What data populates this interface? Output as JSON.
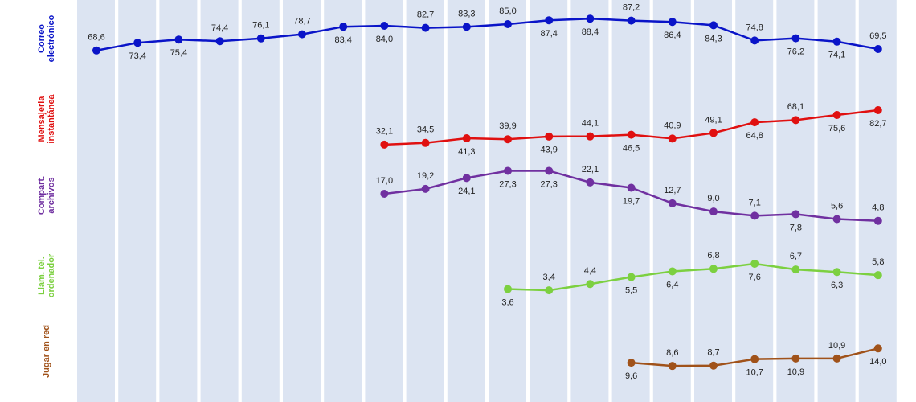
{
  "chart_data": {
    "type": "line",
    "series": [
      {
        "name": "Correo electrónico",
        "color": "#0a14c8",
        "ylim": [
          50,
          100
        ],
        "values": [
          68.6,
          73.4,
          75.4,
          74.4,
          76.1,
          78.7,
          83.4,
          84.0,
          82.7,
          83.3,
          85.0,
          87.4,
          88.4,
          87.2,
          86.4,
          84.3,
          74.8,
          76.2,
          74.1,
          69.5
        ],
        "value_labels": [
          "68,6",
          "73,4",
          "75,4",
          "74,4",
          "76,1",
          "78,7",
          "83,4",
          "84,0",
          "82,7",
          "83,3",
          "85,0",
          "87,4",
          "88,4",
          "87,2",
          "86,4",
          "84,3",
          "74,8",
          "76,2",
          "74,1",
          "69,5"
        ]
      },
      {
        "name": "Mensajeria instantánea",
        "color": "#e01010",
        "ylim": [
          0,
          150
        ],
        "values": [
          null,
          null,
          null,
          null,
          null,
          null,
          null,
          32.1,
          34.5,
          41.3,
          39.9,
          43.9,
          44.1,
          46.5,
          40.9,
          49.1,
          64.8,
          68.1,
          75.6,
          82.7
        ],
        "value_labels": [
          null,
          null,
          null,
          null,
          null,
          null,
          null,
          "32,1",
          "34,5",
          "41,3",
          "39,9",
          "43,9",
          "44,1",
          "46,5",
          "40,9",
          "49,1",
          "64,8",
          "68,1",
          "75,6",
          "82,7"
        ]
      },
      {
        "name": "Compart. archivos",
        "color": "#7030a0",
        "ylim": [
          0,
          30
        ],
        "values": [
          null,
          null,
          null,
          null,
          null,
          null,
          null,
          17.0,
          19.2,
          24.1,
          27.3,
          27.3,
          22.1,
          19.7,
          12.7,
          9.0,
          7.1,
          7.8,
          5.6,
          4.8
        ],
        "value_labels": [
          null,
          null,
          null,
          null,
          null,
          null,
          null,
          "17,0",
          "19,2",
          "24,1",
          "27,3",
          "27,3",
          "22,1",
          "19,7",
          "12,7",
          "9,0",
          "7,1",
          "7,8",
          "5,6",
          "4,8"
        ]
      },
      {
        "name": "Llam. tel. ordenador",
        "color": "#7cd040",
        "ylim": [
          0,
          10
        ],
        "values": [
          null,
          null,
          null,
          null,
          null,
          null,
          null,
          null,
          null,
          null,
          3.6,
          3.4,
          4.4,
          5.5,
          6.4,
          6.8,
          7.6,
          6.7,
          6.3,
          5.8
        ],
        "value_labels": [
          null,
          null,
          null,
          null,
          null,
          null,
          null,
          null,
          null,
          null,
          "3,6",
          "3,4",
          "4,4",
          "5,5",
          "6,4",
          "6,8",
          "7,6",
          "6,7",
          "6,3",
          "5,8"
        ]
      },
      {
        "name": "Jugar en red",
        "color": "#a0521a",
        "ylim": [
          0,
          20
        ],
        "values": [
          null,
          null,
          null,
          null,
          null,
          null,
          null,
          null,
          null,
          null,
          null,
          null,
          null,
          9.6,
          8.6,
          8.7,
          10.7,
          10.9,
          10.9,
          14.0
        ],
        "value_labels": [
          null,
          null,
          null,
          null,
          null,
          null,
          null,
          null,
          null,
          null,
          null,
          null,
          null,
          "9,6",
          "8,6",
          "8,7",
          "10,7",
          "10,9",
          "10,9",
          "14,0"
        ]
      }
    ]
  }
}
